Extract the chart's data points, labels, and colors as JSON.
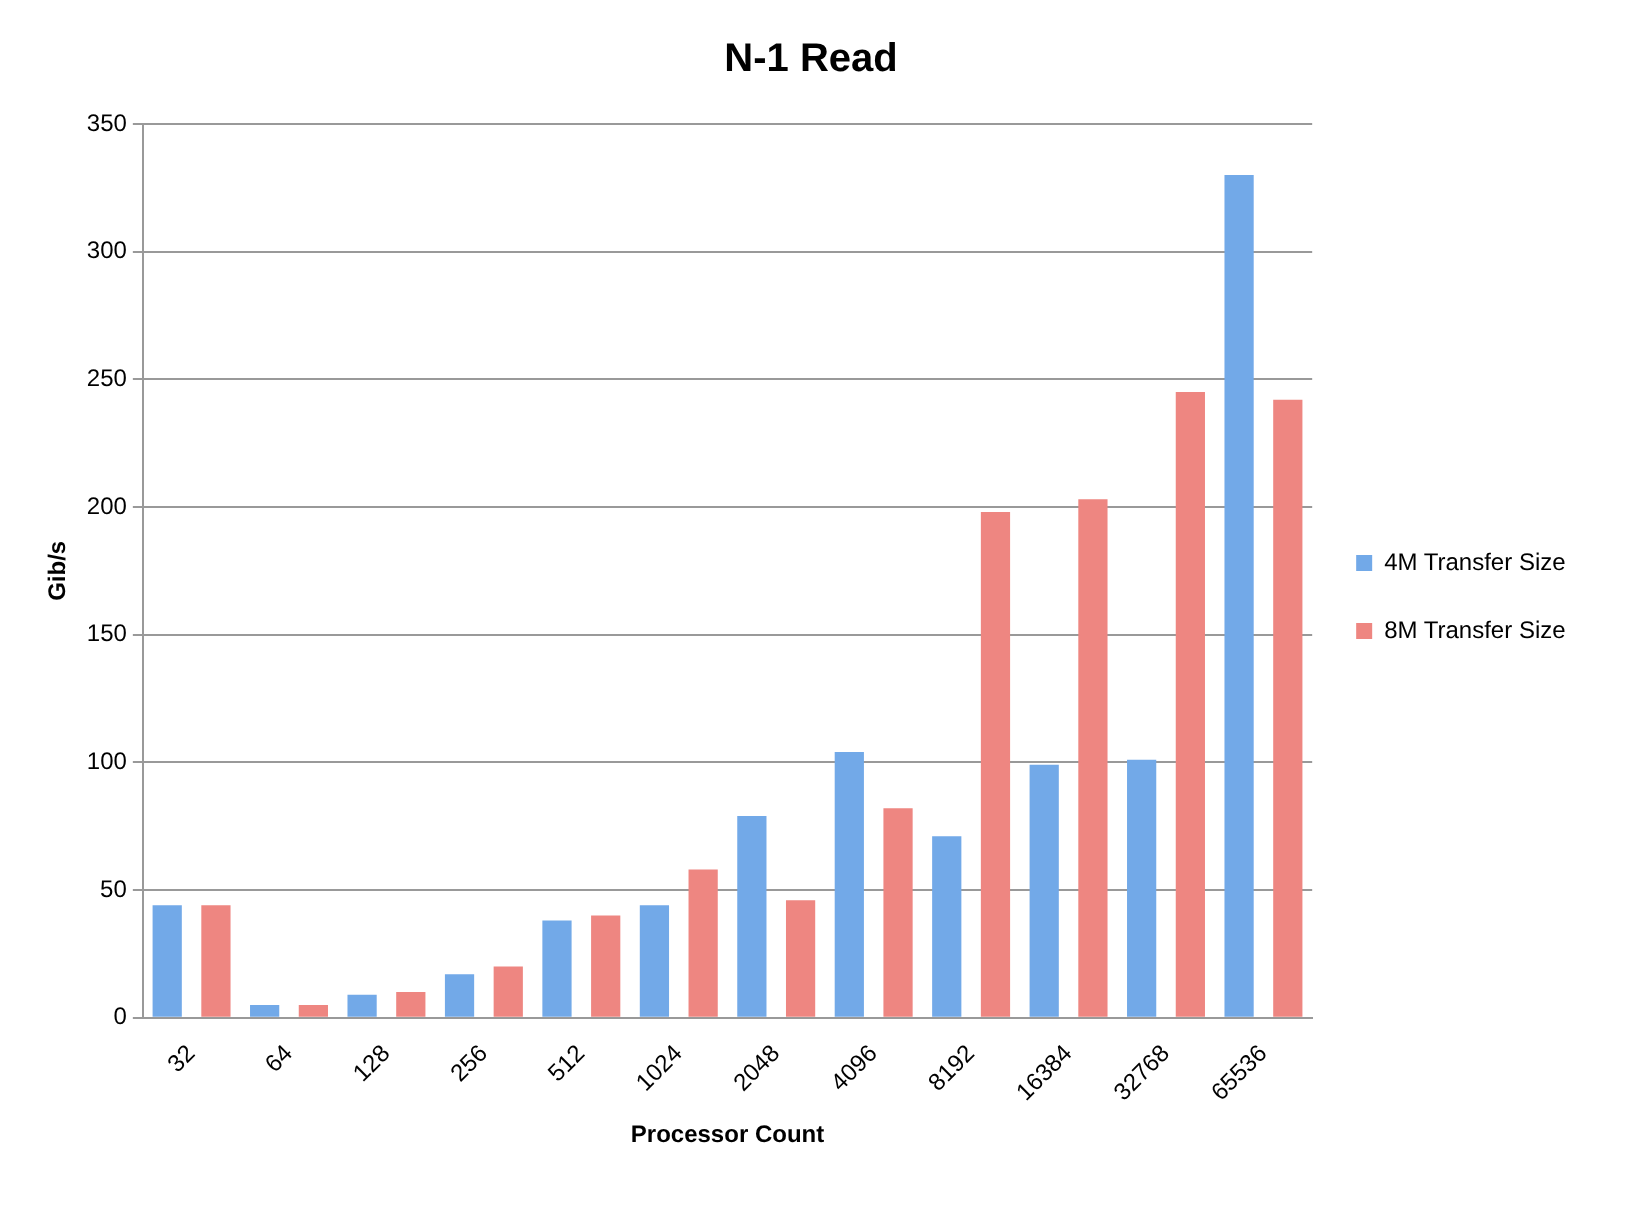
{
  "chart_data": {
    "type": "bar",
    "title": "N-1 Read",
    "xlabel": "Processor Count",
    "ylabel": "Gib/s",
    "categories": [
      "32",
      "64",
      "128",
      "256",
      "512",
      "1024",
      "2048",
      "4096",
      "8192",
      "16384",
      "32768",
      "65536"
    ],
    "series": [
      {
        "name": "4M Transfer Size",
        "color": "#72a9e8",
        "values": [
          44,
          5,
          9,
          17,
          38,
          44,
          79,
          104,
          71,
          99,
          101,
          330
        ]
      },
      {
        "name": "8M Transfer Size",
        "color": "#ee8681",
        "values": [
          44,
          5,
          10,
          20,
          40,
          58,
          46,
          82,
          198,
          203,
          245,
          242
        ]
      }
    ],
    "ylim": [
      0,
      350
    ],
    "yticks": [
      0,
      50,
      100,
      150,
      200,
      250,
      300,
      350
    ],
    "grid": "y",
    "legend": "right"
  }
}
